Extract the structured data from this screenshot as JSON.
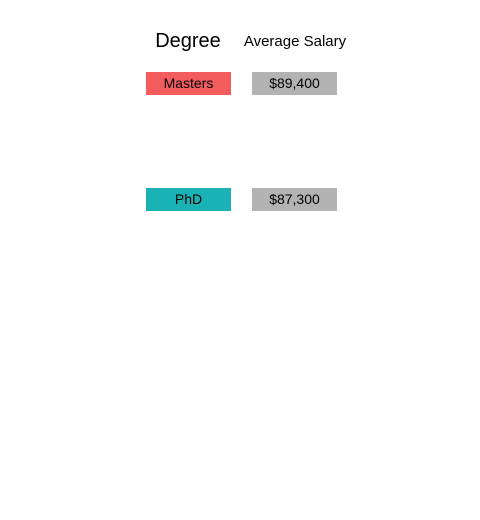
{
  "chart_data": {
    "type": "table",
    "columns": [
      "Degree",
      "Average Salary"
    ],
    "rows": [
      {
        "degree": "Masters",
        "salary_label": "$89,400",
        "salary_value": 89400,
        "color": "#f25c5c"
      },
      {
        "degree": "PhD",
        "salary_label": "$87,300",
        "salary_value": 87300,
        "color": "#19b2b5"
      }
    ],
    "value_cell_color": "#b3b3b3",
    "grid": false
  }
}
